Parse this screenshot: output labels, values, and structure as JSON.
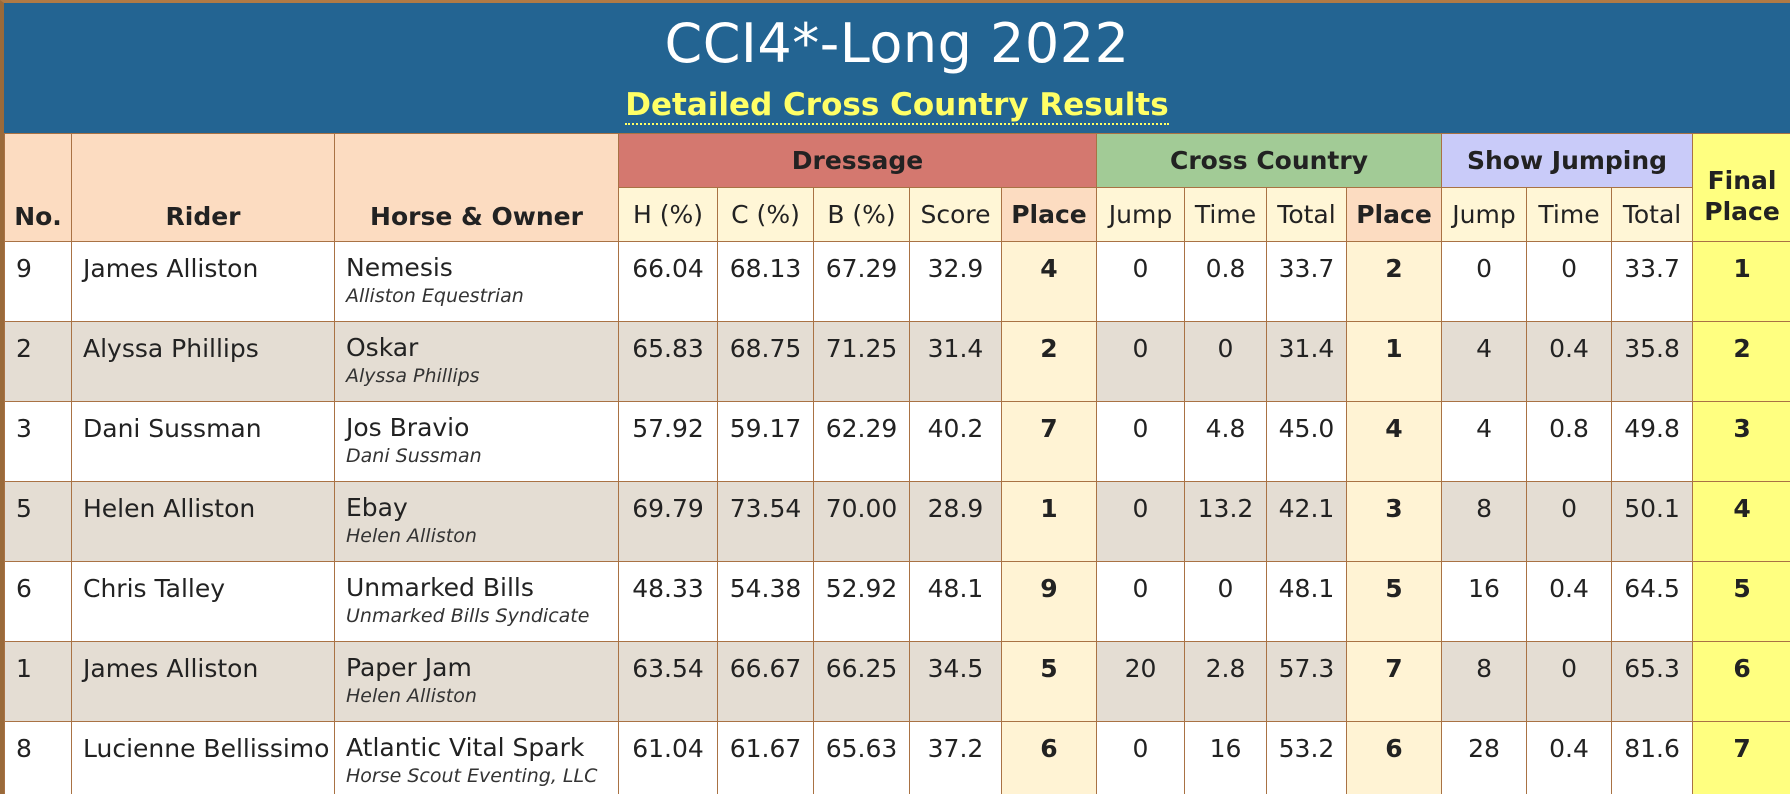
{
  "banner": {
    "title": "CCI4*-Long 2022",
    "subtitle": "Detailed Cross Country Results"
  },
  "header": {
    "no": "No.",
    "rider": "Rider",
    "horse_owner": "Horse & Owner",
    "dressage": "Dressage",
    "cross_country": "Cross Country",
    "show_jumping": "Show Jumping",
    "final_place_line1": "Final",
    "final_place_line2": "Place",
    "dressage_cols": [
      "H (%)",
      "C (%)",
      "B (%)",
      "Score",
      "Place"
    ],
    "xc_cols": [
      "Jump",
      "Time",
      "Total",
      "Place"
    ],
    "sj_cols": [
      "Jump",
      "Time",
      "Total"
    ]
  },
  "rows": [
    {
      "no": "9",
      "rider": "James Alliston",
      "horse": "Nemesis",
      "owner": "Alliston Equestrian",
      "h": "66.04",
      "c": "68.13",
      "b": "67.29",
      "score": "32.9",
      "d_place": "4",
      "xc_jump": "0",
      "xc_time": "0.8",
      "xc_total": "33.7",
      "xc_place": "2",
      "sj_jump": "0",
      "sj_time": "0",
      "sj_total": "33.7",
      "final": "1"
    },
    {
      "no": "2",
      "rider": "Alyssa Phillips",
      "horse": "Oskar",
      "owner": "Alyssa Phillips",
      "h": "65.83",
      "c": "68.75",
      "b": "71.25",
      "score": "31.4",
      "d_place": "2",
      "xc_jump": "0",
      "xc_time": "0",
      "xc_total": "31.4",
      "xc_place": "1",
      "sj_jump": "4",
      "sj_time": "0.4",
      "sj_total": "35.8",
      "final": "2"
    },
    {
      "no": "3",
      "rider": "Dani Sussman",
      "horse": "Jos Bravio",
      "owner": "Dani Sussman",
      "h": "57.92",
      "c": "59.17",
      "b": "62.29",
      "score": "40.2",
      "d_place": "7",
      "xc_jump": "0",
      "xc_time": "4.8",
      "xc_total": "45.0",
      "xc_place": "4",
      "sj_jump": "4",
      "sj_time": "0.8",
      "sj_total": "49.8",
      "final": "3"
    },
    {
      "no": "5",
      "rider": "Helen Alliston",
      "horse": "Ebay",
      "owner": "Helen Alliston",
      "h": "69.79",
      "c": "73.54",
      "b": "70.00",
      "score": "28.9",
      "d_place": "1",
      "xc_jump": "0",
      "xc_time": "13.2",
      "xc_total": "42.1",
      "xc_place": "3",
      "sj_jump": "8",
      "sj_time": "0",
      "sj_total": "50.1",
      "final": "4"
    },
    {
      "no": "6",
      "rider": "Chris Talley",
      "horse": "Unmarked Bills",
      "owner": "Unmarked Bills Syndicate",
      "h": "48.33",
      "c": "54.38",
      "b": "52.92",
      "score": "48.1",
      "d_place": "9",
      "xc_jump": "0",
      "xc_time": "0",
      "xc_total": "48.1",
      "xc_place": "5",
      "sj_jump": "16",
      "sj_time": "0.4",
      "sj_total": "64.5",
      "final": "5"
    },
    {
      "no": "1",
      "rider": "James Alliston",
      "horse": "Paper Jam",
      "owner": "Helen Alliston",
      "h": "63.54",
      "c": "66.67",
      "b": "66.25",
      "score": "34.5",
      "d_place": "5",
      "xc_jump": "20",
      "xc_time": "2.8",
      "xc_total": "57.3",
      "xc_place": "7",
      "sj_jump": "8",
      "sj_time": "0",
      "sj_total": "65.3",
      "final": "6"
    },
    {
      "no": "8",
      "rider": "Lucienne Bellissimo",
      "horse": "Atlantic Vital Spark",
      "owner": "Horse Scout Eventing, LLC",
      "h": "61.04",
      "c": "61.67",
      "b": "65.63",
      "score": "37.2",
      "d_place": "6",
      "xc_jump": "0",
      "xc_time": "16",
      "xc_total": "53.2",
      "xc_place": "6",
      "sj_jump": "28",
      "sj_time": "0.4",
      "sj_total": "81.6",
      "final": "7"
    }
  ]
}
